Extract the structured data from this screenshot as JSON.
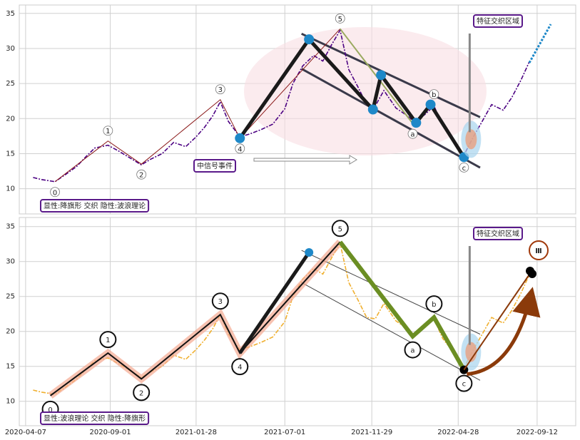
{
  "chart_data": [
    {
      "type": "line",
      "x": [
        "2020-04-20",
        "2020-05-05",
        "2020-05-28",
        "2020-06-15",
        "2020-07-05",
        "2020-07-20",
        "2020-08-05",
        "2020-08-28",
        "2020-09-15",
        "2020-10-01",
        "2020-10-25",
        "2020-11-10",
        "2020-11-30",
        "2020-12-20",
        "2021-01-10",
        "2021-01-28",
        "2021-02-12",
        "2021-02-26",
        "2021-03-11",
        "2021-03-25",
        "2021-04-14",
        "2021-05-01",
        "2021-05-20",
        "2021-06-10",
        "2021-07-01",
        "2021-07-15",
        "2021-08-01",
        "2021-08-20",
        "2021-09-05",
        "2021-09-20",
        "2021-10-05",
        "2021-10-20",
        "2021-11-05",
        "2021-11-20",
        "2021-12-05",
        "2021-12-20",
        "2022-01-10",
        "2022-01-28",
        "2022-02-10",
        "2022-02-28",
        "2022-03-17",
        "2022-04-01",
        "2022-04-20",
        "2022-05-08",
        "2022-05-25",
        "2022-06-10",
        "2022-06-25",
        "2022-07-15",
        "2022-07-30",
        "2022-08-15",
        "2022-08-30"
      ],
      "series": [
        {
          "color": "#4b0082",
          "values": [
            11.6,
            11.3,
            11.0,
            12.0,
            13.2,
            14.5,
            15.8,
            16.2,
            15.4,
            14.6,
            13.4,
            14.2,
            15.0,
            16.6,
            16.0,
            17.4,
            18.8,
            20.4,
            22.4,
            19.6,
            17.4,
            17.8,
            18.4,
            19.2,
            21.4,
            25.0,
            27.5,
            29.0,
            28.2,
            30.5,
            32.6,
            27.0,
            24.5,
            22.0,
            21.8,
            24.0,
            21.5,
            20.5,
            19.6,
            20.5,
            21.8,
            19.0,
            17.0,
            14.8,
            17.5,
            19.8,
            22.0,
            21.2,
            23.0,
            25.5,
            28.2
          ]
        }
      ],
      "xlim": [
        "2020-03-27",
        "2022-11-18"
      ],
      "ylim": [
        6.4,
        36.2
      ],
      "yticks": [
        10,
        15,
        20,
        25,
        30,
        35
      ],
      "grid": true,
      "waves": {
        "labels": [
          "0",
          "1",
          "2",
          "3",
          "4",
          "5",
          "a",
          "b",
          "c"
        ],
        "x": [
          "2020-05-28",
          "2020-08-28",
          "2020-10-25",
          "2021-03-11",
          "2021-04-14",
          "2021-10-05",
          "2022-02-08",
          "2022-03-17",
          "2022-05-08"
        ],
        "values": [
          11.0,
          16.8,
          13.5,
          22.7,
          17.2,
          32.8,
          19.3,
          22.0,
          14.5
        ],
        "color": "#8b1a1a"
      },
      "pattern": {
        "x": [
          "2021-04-14",
          "2021-08-12",
          "2021-12-01",
          "2021-12-15",
          "2022-02-14",
          "2022-03-11",
          "2022-05-08"
        ],
        "values": [
          17.2,
          31.3,
          21.3,
          26.2,
          19.4,
          22.0,
          14.5
        ],
        "color": "#1a1a1a",
        "marker_color": "#1e88c8"
      },
      "channel": {
        "x": [
          "2021-07-30",
          "2022-06-05"
        ],
        "upper": [
          32.1,
          20.2
        ],
        "lower": [
          27.1,
          13.0
        ],
        "color": "#3a3a4a"
      },
      "annotations": [
        "特征交织区域",
        "中信号事件",
        "显性:降旗形 交织 隐性:波浪理论"
      ]
    },
    {
      "type": "line",
      "x": [
        "2020-04-20",
        "2020-05-05",
        "2020-05-28",
        "2020-06-15",
        "2020-07-05",
        "2020-07-20",
        "2020-08-05",
        "2020-08-28",
        "2020-09-15",
        "2020-10-01",
        "2020-10-25",
        "2020-11-10",
        "2020-11-30",
        "2020-12-20",
        "2021-01-10",
        "2021-01-28",
        "2021-02-12",
        "2021-02-26",
        "2021-03-11",
        "2021-03-25",
        "2021-04-14",
        "2021-05-01",
        "2021-05-20",
        "2021-06-10",
        "2021-07-01",
        "2021-07-15",
        "2021-08-01",
        "2021-08-20",
        "2021-09-05",
        "2021-09-20",
        "2021-10-05",
        "2021-10-20",
        "2021-11-05",
        "2021-11-20",
        "2021-12-05",
        "2021-12-20",
        "2022-01-10",
        "2022-01-28",
        "2022-02-10",
        "2022-02-28",
        "2022-03-17",
        "2022-04-01",
        "2022-04-20",
        "2022-05-08",
        "2022-05-25",
        "2022-06-10",
        "2022-06-25",
        "2022-07-15",
        "2022-07-30",
        "2022-08-15",
        "2022-08-30"
      ],
      "series": [
        {
          "color": "#f0b030",
          "values": [
            11.6,
            11.3,
            11.0,
            12.0,
            13.2,
            14.5,
            15.8,
            16.2,
            15.4,
            14.6,
            13.4,
            14.2,
            15.0,
            16.6,
            16.0,
            17.4,
            18.8,
            20.4,
            22.4,
            19.6,
            17.4,
            17.8,
            18.4,
            19.2,
            21.4,
            25.0,
            27.5,
            29.0,
            28.2,
            30.5,
            32.6,
            27.0,
            24.5,
            22.0,
            21.8,
            24.0,
            21.5,
            20.5,
            19.6,
            20.5,
            21.8,
            19.0,
            17.0,
            14.8,
            17.5,
            19.8,
            22.0,
            21.2,
            23.0,
            25.5,
            28.2
          ]
        }
      ],
      "xlim": [
        "2020-03-27",
        "2022-11-18"
      ],
      "ylim": [
        6.5,
        36.3
      ],
      "xticks": [
        "2020-04-07",
        "2020-09-01",
        "2021-01-28",
        "2021-07-01",
        "2021-11-29",
        "2022-04-28",
        "2022-09-12"
      ],
      "yticks": [
        10,
        15,
        20,
        25,
        30,
        35
      ],
      "grid": true,
      "waves": {
        "labels": [
          "0",
          "1",
          "2",
          "3",
          "4",
          "5",
          "a",
          "b",
          "c"
        ],
        "x": [
          "2020-05-20",
          "2020-08-28",
          "2020-10-25",
          "2021-03-11",
          "2021-04-14",
          "2021-10-05",
          "2022-02-08",
          "2022-03-17",
          "2022-05-08"
        ],
        "values": [
          10.8,
          16.9,
          13.2,
          22.4,
          16.9,
          32.8,
          19.3,
          22.0,
          14.5
        ],
        "color": "#8b1a1a"
      },
      "pattern": {
        "x": [
          "2021-04-14",
          "2021-08-12"
        ],
        "values": [
          16.9,
          31.3
        ],
        "color": "#1a1a1a",
        "marker_color": "#1e88c8"
      },
      "channel": {
        "x": [
          "2021-07-30",
          "2022-06-05"
        ],
        "upper": [
          31.6,
          19.6
        ],
        "lower": [
          27.0,
          13.0
        ],
        "color": "#444"
      },
      "annotations": [
        "特征交织区域",
        "显性:波浪理论 交织 隐性:降旗形",
        "Ⅲ"
      ]
    }
  ]
}
